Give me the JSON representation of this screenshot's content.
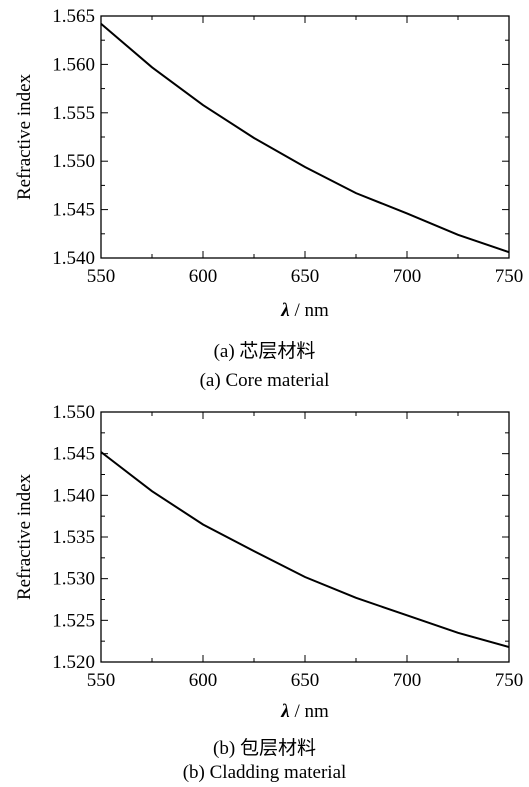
{
  "chart_data": [
    {
      "type": "line",
      "xlabel_symbol": "λ",
      "xlabel_unit": "/ nm",
      "ylabel": "Refractive index",
      "xlim": [
        550,
        750
      ],
      "ylim": [
        1.54,
        1.565
      ],
      "xticks": [
        "550",
        "600",
        "650",
        "700",
        "750"
      ],
      "yticks": [
        "1.540",
        "1.545",
        "1.550",
        "1.555",
        "1.560",
        "1.565"
      ],
      "grid": false,
      "x": [
        550,
        575,
        600,
        625,
        650,
        675,
        700,
        725,
        750
      ],
      "series": [
        {
          "values": [
            1.5642,
            1.5597,
            1.5558,
            1.5524,
            1.5494,
            1.5467,
            1.5446,
            1.5424,
            1.5406
          ]
        }
      ],
      "caption_cn": "(a) 芯层材料",
      "caption_en": "(a) Core material"
    },
    {
      "type": "line",
      "xlabel_symbol": "λ",
      "xlabel_unit": "/ nm",
      "ylabel": "Refractive index",
      "xlim": [
        550,
        750
      ],
      "ylim": [
        1.52,
        1.55
      ],
      "xticks": [
        "550",
        "600",
        "650",
        "700",
        "750"
      ],
      "yticks": [
        "1.520",
        "1.525",
        "1.530",
        "1.535",
        "1.540",
        "1.545",
        "1.550"
      ],
      "grid": false,
      "x": [
        550,
        575,
        600,
        625,
        650,
        675,
        700,
        725,
        750
      ],
      "series": [
        {
          "values": [
            1.5452,
            1.5405,
            1.5365,
            1.5333,
            1.5302,
            1.5277,
            1.5256,
            1.5235,
            1.5218
          ]
        }
      ],
      "caption_cn": "(b) 包层材料",
      "caption_en": "(b) Cladding material"
    }
  ]
}
